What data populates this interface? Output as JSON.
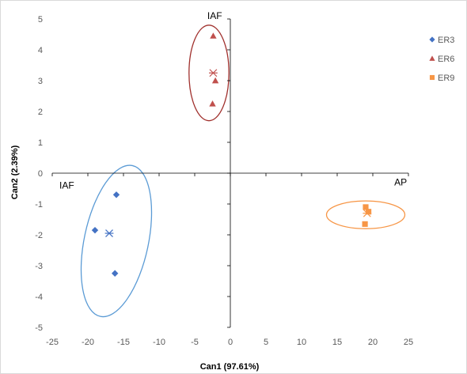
{
  "chart_data": {
    "type": "scatter",
    "title": "",
    "xlabel": "Can1 (97.61%)",
    "ylabel": "Can2 (2.39%)",
    "xlim": [
      -25,
      25
    ],
    "ylim": [
      -5,
      5
    ],
    "xticks": [
      -25,
      -20,
      -15,
      -10,
      -5,
      0,
      5,
      10,
      15,
      20,
      25
    ],
    "yticks": [
      -5,
      -4,
      -3,
      -2,
      -1,
      0,
      1,
      2,
      3,
      4,
      5
    ],
    "legend_position": "right",
    "grid": false,
    "series": [
      {
        "name": "ER3",
        "marker": "diamond",
        "color": "#4472C4",
        "ellipse_color": "#5B9BD5",
        "points": [
          [
            -16,
            -0.7
          ],
          [
            -19,
            -1.85
          ],
          [
            -16.2,
            -3.25
          ]
        ],
        "centroid": [
          -17,
          -1.95
        ],
        "ellipse": {
          "center": [
            -16,
            -2.2
          ],
          "rx": 4.5,
          "ry": 2.5,
          "angle_deg": 12
        }
      },
      {
        "name": "ER6",
        "marker": "triangle",
        "color": "#C0504D",
        "ellipse_color": "#A0302D",
        "points": [
          [
            -2.4,
            4.45
          ],
          [
            -2.1,
            3.0
          ],
          [
            -2.5,
            2.25
          ]
        ],
        "centroid": [
          -2.4,
          3.25
        ],
        "ellipse": {
          "center": [
            -3,
            3.25
          ],
          "rx": 2.8,
          "ry": 1.55,
          "angle_deg": 0
        }
      },
      {
        "name": "ER9",
        "marker": "square",
        "color": "#F79646",
        "ellipse_color": "#F79646",
        "points": [
          [
            19,
            -1.1
          ],
          [
            19.4,
            -1.25
          ],
          [
            18.9,
            -1.65
          ]
        ],
        "centroid": [
          19.2,
          -1.3
        ],
        "ellipse": {
          "center": [
            19,
            -1.35
          ],
          "rx": 5.5,
          "ry": 0.45,
          "angle_deg": 0
        }
      }
    ],
    "annotations": [
      {
        "text": "IAF",
        "x": -2.2,
        "y": 5
      },
      {
        "text": "IAF",
        "x": -24,
        "y": -0.5
      },
      {
        "text": "AP",
        "x": 24.8,
        "y": -0.4
      }
    ]
  }
}
